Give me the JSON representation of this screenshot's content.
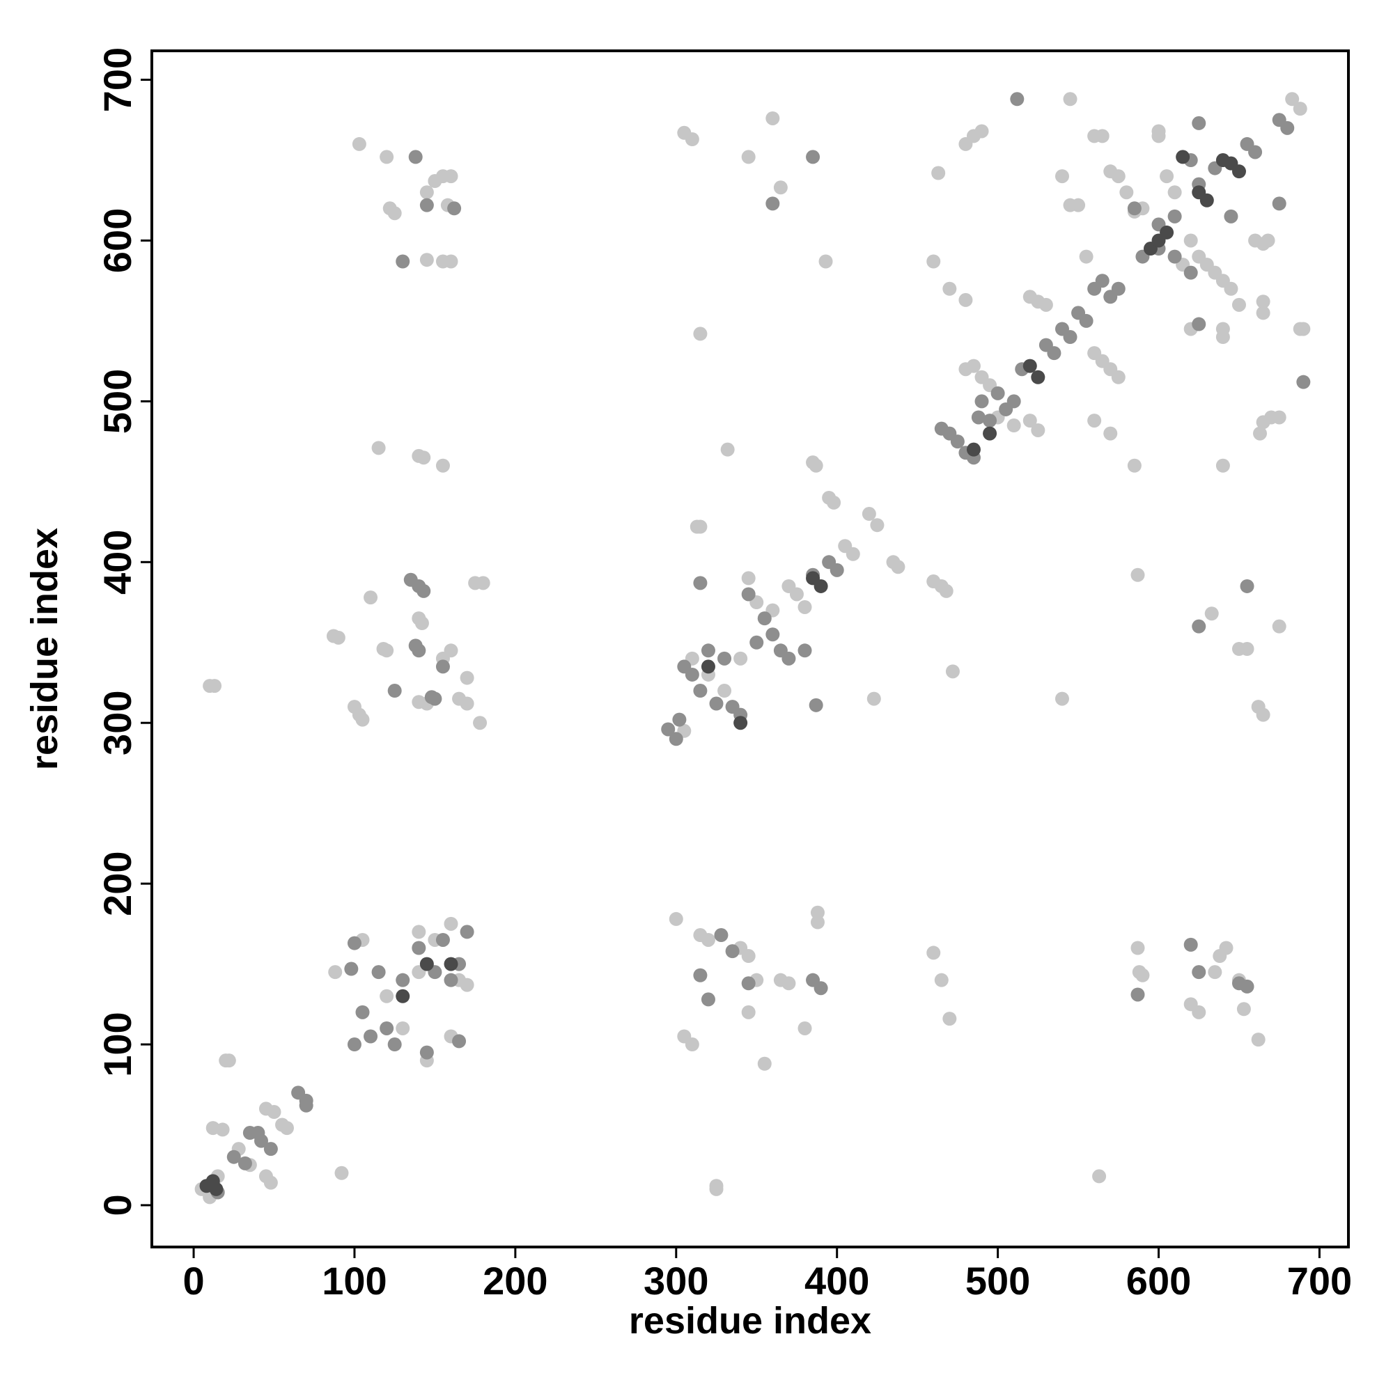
{
  "chart_data": {
    "type": "scatter",
    "xlabel": "residue index",
    "ylabel": "residue index",
    "xlim": [
      -26,
      718
    ],
    "ylim": [
      -26,
      718
    ],
    "xticks": [
      0,
      100,
      200,
      300,
      400,
      500,
      600,
      700
    ],
    "yticks": [
      0,
      100,
      200,
      300,
      400,
      500,
      600,
      700
    ],
    "series": [
      {
        "color": "#c6c6c6",
        "x": [
          12,
          18,
          20,
          22,
          28,
          35,
          45,
          50,
          55,
          58,
          45,
          48,
          10,
          5,
          15,
          92,
          88,
          105,
          120,
          140,
          150,
          160,
          165,
          170,
          145,
          160,
          140,
          130,
          103,
          120,
          122,
          125,
          145,
          155,
          160,
          155,
          160,
          150,
          145,
          158,
          10,
          13,
          87,
          90,
          100,
          103,
          105,
          110,
          118,
          120,
          140,
          142,
          140,
          143,
          155,
          115,
          155,
          160,
          165,
          170,
          170,
          175,
          180,
          178,
          145,
          140,
          305,
          310,
          320,
          330,
          340,
          345,
          350,
          360,
          370,
          375,
          380,
          385,
          387,
          395,
          398,
          405,
          410,
          420,
          425,
          435,
          438,
          460,
          465,
          468,
          313,
          315,
          332,
          472,
          423,
          305,
          310,
          345,
          360,
          365,
          393,
          315,
          300,
          305,
          310,
          315,
          320,
          340,
          345,
          350,
          345,
          355,
          365,
          370,
          380,
          388,
          388,
          460,
          465,
          470,
          325,
          325,
          480,
          485,
          490,
          495,
          500,
          510,
          520,
          525,
          520,
          525,
          530,
          540,
          545,
          545,
          550,
          555,
          560,
          565,
          560,
          565,
          570,
          575,
          560,
          570,
          570,
          575,
          580,
          585,
          590,
          600,
          600,
          605,
          610,
          615,
          620,
          625,
          630,
          635,
          640,
          645,
          650,
          660,
          665,
          668,
          663,
          665,
          670,
          675,
          620,
          640,
          640,
          688,
          690,
          683,
          688,
          665,
          665,
          480,
          485,
          490,
          463,
          460,
          470,
          480,
          585,
          587,
          640,
          633,
          650,
          655,
          662,
          665,
          675,
          587,
          588,
          590,
          620,
          625,
          635,
          638,
          642,
          650,
          653,
          662,
          563,
          540
        ],
        "y": [
          48,
          47,
          90,
          90,
          35,
          25,
          60,
          58,
          50,
          48,
          18,
          14,
          5,
          10,
          18,
          20,
          145,
          165,
          130,
          170,
          165,
          175,
          140,
          137,
          90,
          105,
          145,
          110,
          660,
          652,
          620,
          617,
          588,
          587,
          587,
          640,
          640,
          637,
          630,
          622,
          323,
          323,
          354,
          353,
          310,
          305,
          302,
          378,
          346,
          345,
          365,
          362,
          466,
          465,
          460,
          471,
          340,
          345,
          315,
          312,
          328,
          387,
          387,
          300,
          312,
          313,
          295,
          340,
          330,
          320,
          340,
          390,
          375,
          370,
          385,
          380,
          372,
          462,
          460,
          440,
          437,
          410,
          405,
          430,
          423,
          400,
          397,
          388,
          385,
          382,
          422,
          422,
          470,
          332,
          315,
          667,
          663,
          652,
          676,
          633,
          587,
          542,
          178,
          105,
          100,
          168,
          165,
          160,
          155,
          140,
          120,
          88,
          140,
          138,
          110,
          182,
          176,
          157,
          140,
          116,
          10,
          12,
          520,
          522,
          515,
          510,
          490,
          485,
          488,
          482,
          565,
          562,
          560,
          640,
          622,
          688,
          622,
          590,
          665,
          665,
          530,
          525,
          520,
          515,
          488,
          480,
          643,
          640,
          630,
          618,
          620,
          665,
          668,
          640,
          630,
          585,
          600,
          590,
          585,
          580,
          575,
          570,
          560,
          600,
          598,
          600,
          480,
          487,
          490,
          490,
          545,
          540,
          545,
          545,
          545,
          688,
          682,
          562,
          555,
          660,
          665,
          668,
          642,
          587,
          570,
          563,
          460,
          392,
          460,
          368,
          346,
          346,
          310,
          305,
          360,
          160,
          145,
          143,
          125,
          120,
          145,
          155,
          160,
          140,
          122,
          103,
          18,
          315
        ]
      },
      {
        "color": "#8e8e8e",
        "x": [
          35,
          40,
          42,
          48,
          65,
          70,
          70,
          25,
          32,
          15,
          100,
          105,
          110,
          115,
          125,
          130,
          140,
          150,
          155,
          160,
          165,
          170,
          98,
          100,
          120,
          145,
          165,
          130,
          138,
          145,
          162,
          135,
          140,
          143,
          140,
          138,
          125,
          150,
          148,
          155,
          295,
          300,
          302,
          305,
          310,
          315,
          320,
          325,
          330,
          335,
          340,
          345,
          350,
          355,
          360,
          365,
          370,
          380,
          385,
          395,
          400,
          315,
          387,
          385,
          360,
          315,
          320,
          335,
          345,
          385,
          390,
          328,
          465,
          470,
          475,
          480,
          485,
          488,
          490,
          495,
          500,
          505,
          510,
          515,
          530,
          535,
          540,
          545,
          550,
          555,
          560,
          565,
          570,
          575,
          590,
          600,
          610,
          620,
          625,
          635,
          655,
          660,
          675,
          680,
          512,
          625,
          620,
          625,
          675,
          690,
          655,
          625,
          585,
          600,
          610,
          645,
          587,
          620,
          625,
          650,
          655
        ],
        "y": [
          45,
          45,
          40,
          35,
          70,
          65,
          62,
          30,
          26,
          8,
          100,
          120,
          105,
          145,
          100,
          140,
          160,
          145,
          165,
          140,
          150,
          170,
          147,
          163,
          110,
          95,
          102,
          587,
          652,
          622,
          620,
          389,
          385,
          382,
          345,
          348,
          320,
          315,
          316,
          335,
          296,
          290,
          302,
          335,
          330,
          320,
          345,
          312,
          340,
          310,
          305,
          380,
          350,
          365,
          355,
          345,
          340,
          345,
          392,
          400,
          395,
          387,
          311,
          652,
          623,
          143,
          128,
          158,
          138,
          140,
          135,
          168,
          483,
          480,
          475,
          468,
          465,
          490,
          500,
          488,
          505,
          495,
          500,
          520,
          535,
          530,
          545,
          540,
          555,
          550,
          570,
          575,
          565,
          570,
          590,
          610,
          615,
          650,
          635,
          645,
          660,
          655,
          675,
          670,
          688,
          673,
          580,
          548,
          623,
          512,
          385,
          360,
          620,
          595,
          590,
          615,
          131,
          162,
          145,
          138,
          136
        ]
      },
      {
        "color": "#4a4a4a",
        "x": [
          8,
          12,
          14,
          130,
          145,
          160,
          320,
          340,
          385,
          390,
          485,
          495,
          520,
          525,
          595,
          605,
          630,
          640,
          645,
          650,
          615,
          600,
          625
        ],
        "y": [
          12,
          15,
          10,
          130,
          150,
          150,
          335,
          300,
          390,
          385,
          470,
          480,
          522,
          515,
          595,
          605,
          625,
          650,
          648,
          643,
          652,
          600,
          630
        ]
      }
    ]
  }
}
